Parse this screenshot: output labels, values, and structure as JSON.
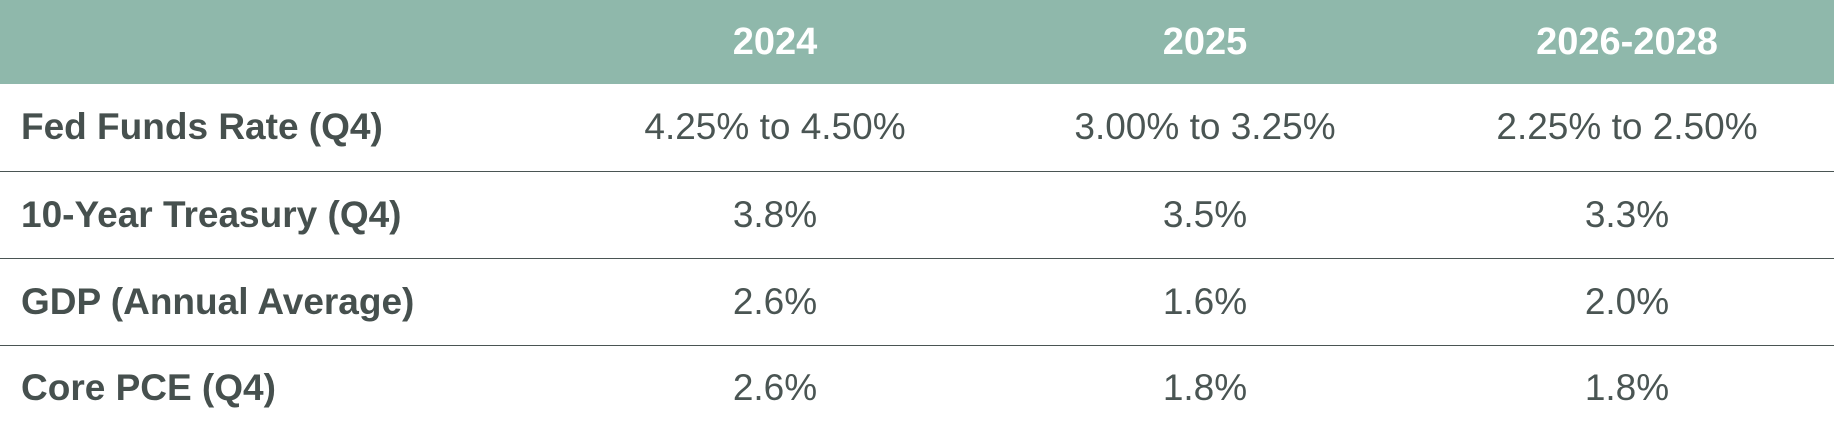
{
  "table": {
    "columns": [
      "",
      "2024",
      "2025",
      "2026-2028"
    ],
    "rows": [
      {
        "label": "Fed Funds Rate (Q4)",
        "values": [
          "4.25% to 4.50%",
          "3.00% to 3.25%",
          "2.25% to 2.50%"
        ]
      },
      {
        "label": "10-Year Treasury (Q4)",
        "values": [
          "3.8%",
          "3.5%",
          "3.3%"
        ]
      },
      {
        "label": "GDP (Annual Average)",
        "values": [
          "2.6%",
          "1.6%",
          "2.0%"
        ]
      },
      {
        "label": "Core PCE (Q4)",
        "values": [
          "2.6%",
          "1.8%",
          "1.8%"
        ]
      }
    ]
  },
  "colors": {
    "header_bg": "#8fb8ab",
    "header_text": "#ffffff",
    "body_text": "#4a5553",
    "row_divider": "#4a5553"
  }
}
